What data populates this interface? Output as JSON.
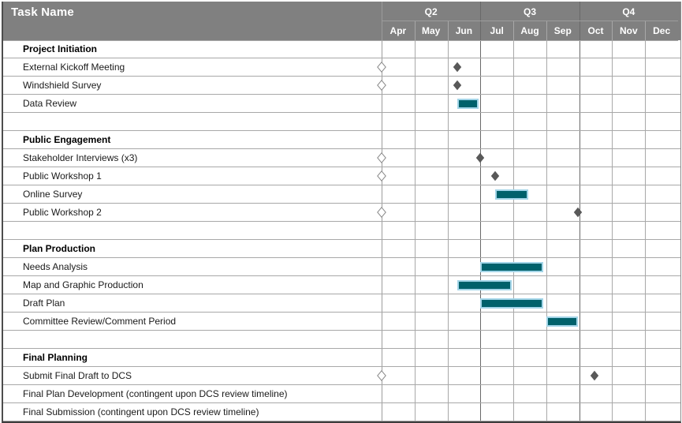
{
  "header": {
    "title": "Task Name",
    "quarters": [
      {
        "label": "Q2",
        "months": [
          "Apr",
          "May",
          "Jun"
        ]
      },
      {
        "label": "Q3",
        "months": [
          "Jul",
          "Aug",
          "Sep"
        ]
      },
      {
        "label": "Q4",
        "months": [
          "Oct",
          "Nov",
          "Dec"
        ]
      }
    ]
  },
  "colors": {
    "header_bg": "#808080",
    "header_text": "#ffffff",
    "bar_fill": "#00616b",
    "bar_border": "#a3d5e8",
    "milestone_fill": "#595959",
    "edge_diamond_stroke": "#8a8a8a",
    "grid_light": "#a8a8a8",
    "grid_quarter": "#696969",
    "task_divider": "#9c9c9c"
  },
  "chart_data": {
    "type": "gantt",
    "title": "Task Name",
    "timeline_months": [
      "Apr",
      "May",
      "Jun",
      "Jul",
      "Aug",
      "Sep",
      "Oct",
      "Nov",
      "Dec"
    ],
    "timeline_quarters": [
      "Q2",
      "Q3",
      "Q4"
    ],
    "unit_note": "bar and milestone positions are in month units where 0 = start of Apr and 9 = end of Dec",
    "rows": [
      {
        "label": "Project Initiation",
        "kind": "section"
      },
      {
        "label": "External Kickoff Meeting",
        "kind": "task",
        "edge_marker": true,
        "milestone_at": 2.3
      },
      {
        "label": "Windshield Survey",
        "kind": "task",
        "edge_marker": true,
        "milestone_at": 2.3
      },
      {
        "label": "Data Review",
        "kind": "task",
        "bar": [
          2.3,
          2.95
        ]
      },
      {
        "label": "",
        "kind": "spacer"
      },
      {
        "label": "Public Engagement",
        "kind": "section"
      },
      {
        "label": "Stakeholder Interviews (x3)",
        "kind": "task",
        "edge_marker": true,
        "milestone_at": 3.0
      },
      {
        "label": "Public Workshop 1",
        "kind": "task",
        "edge_marker": true,
        "milestone_at": 3.45
      },
      {
        "label": "Online Survey",
        "kind": "task",
        "bar": [
          3.45,
          4.45
        ]
      },
      {
        "label": "Public Workshop 2",
        "kind": "task",
        "edge_marker": true,
        "milestone_at": 5.97
      },
      {
        "label": "",
        "kind": "spacer"
      },
      {
        "label": "Plan Production",
        "kind": "section"
      },
      {
        "label": "Needs Analysis",
        "kind": "task",
        "bar": [
          3.0,
          4.9
        ]
      },
      {
        "label": "Map and Graphic Production",
        "kind": "task",
        "bar": [
          2.3,
          3.95
        ]
      },
      {
        "label": "Draft Plan",
        "kind": "task",
        "bar": [
          3.0,
          4.9
        ]
      },
      {
        "label": "Committee Review/Comment Period",
        "kind": "task",
        "bar": [
          5.0,
          5.97
        ]
      },
      {
        "label": "",
        "kind": "spacer"
      },
      {
        "label": "Final Planning",
        "kind": "section"
      },
      {
        "label": "Submit Final Draft to DCS",
        "kind": "task",
        "edge_marker": true,
        "milestone_at": 6.47
      },
      {
        "label": "Final Plan Development (contingent upon DCS review timeline)",
        "kind": "task"
      },
      {
        "label": "Final Submission (contingent upon DCS review timeline)",
        "kind": "task"
      }
    ]
  }
}
